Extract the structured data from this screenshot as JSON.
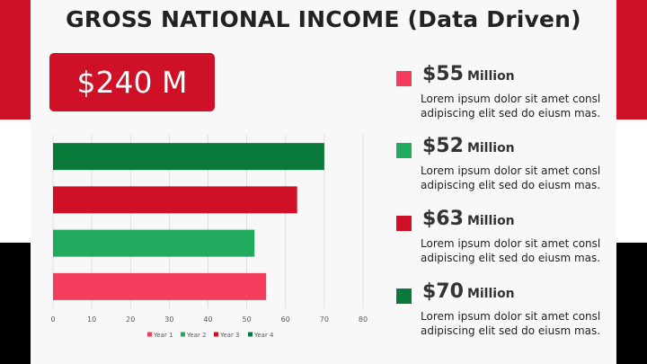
{
  "page": {
    "title": "GROSS NATIONAL INCOME (Data Driven)",
    "total": "$240 M",
    "colors": {
      "accent_red": "#cf1127",
      "year1": "#f43d5c",
      "year2": "#22ab5f",
      "year3": "#cf1127",
      "year4": "#0a7a3a"
    }
  },
  "legend_items": [
    {
      "amount": "$55",
      "unit": "Million",
      "desc1": "Lorem ipsum dolor sit amet consl",
      "desc2": "adipiscing elit sed do eiusm mas.",
      "color": "#f43d5c"
    },
    {
      "amount": "$52",
      "unit": "Million",
      "desc1": "Lorem ipsum dolor sit amet consl",
      "desc2": "adipiscing elit sed do eiusm mas.",
      "color": "#22ab5f"
    },
    {
      "amount": "$63",
      "unit": "Million",
      "desc1": "Lorem ipsum dolor sit amet consl",
      "desc2": "adipiscing elit sed do eiusm mas.",
      "color": "#cf1127"
    },
    {
      "amount": "$70",
      "unit": "Million",
      "desc1": "Lorem ipsum dolor sit amet consl",
      "desc2": "adipiscing elit sed do eiusm mas.",
      "color": "#0a7a3a"
    }
  ],
  "chart_data": {
    "type": "bar",
    "orientation": "horizontal",
    "series": [
      {
        "name": "Year 1",
        "value": 55,
        "color": "#f43d5c"
      },
      {
        "name": "Year 2",
        "value": 52,
        "color": "#22ab5f"
      },
      {
        "name": "Year 3",
        "value": 63,
        "color": "#cf1127"
      },
      {
        "name": "Year 4",
        "value": 70,
        "color": "#0a7a3a"
      }
    ],
    "xlim": [
      0,
      80
    ],
    "xticks": [
      0,
      10,
      20,
      30,
      40,
      50,
      60,
      70,
      80
    ],
    "grid": true,
    "legend_position": "bottom"
  }
}
